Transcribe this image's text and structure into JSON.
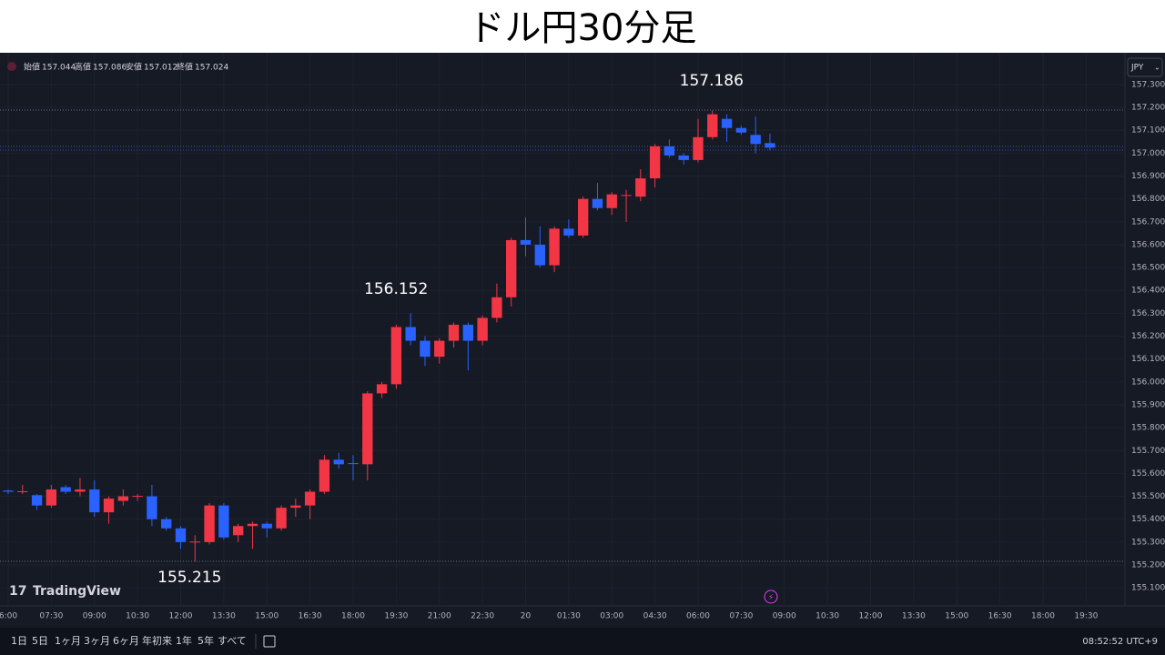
{
  "title": "ドル円30分足",
  "ohlc_header": {
    "open_label": "始値",
    "open": 157.044,
    "high_label": "高値",
    "high": 157.086,
    "low_label": "安値",
    "low": 157.012,
    "close_label": "終値",
    "close": 157.024
  },
  "currency": "JPY",
  "branding": "TradingView",
  "toolbar": {
    "ranges": [
      "1日",
      "5日",
      "1ヶ月",
      "3ヶ月",
      "6ヶ月",
      "年初来",
      "1年",
      "5年",
      "すべて"
    ],
    "clock": "08:52:52 UTC+9"
  },
  "chart_data": {
    "type": "candlestick",
    "up_color": "#f23645",
    "down_color": "#2962ff",
    "candles": [
      {
        "open": 155.525,
        "high": 155.53,
        "low": 155.51,
        "close": 155.52
      },
      {
        "open": 155.52,
        "high": 155.55,
        "low": 155.51,
        "close": 155.522
      },
      {
        "open": 155.505,
        "high": 155.51,
        "low": 155.44,
        "close": 155.46
      },
      {
        "open": 155.46,
        "high": 155.55,
        "low": 155.45,
        "close": 155.53
      },
      {
        "open": 155.54,
        "high": 155.55,
        "low": 155.51,
        "close": 155.52
      },
      {
        "open": 155.52,
        "high": 155.58,
        "low": 155.5,
        "close": 155.53
      },
      {
        "open": 155.53,
        "high": 155.57,
        "low": 155.41,
        "close": 155.43
      },
      {
        "open": 155.43,
        "high": 155.5,
        "low": 155.38,
        "close": 155.49
      },
      {
        "open": 155.48,
        "high": 155.53,
        "low": 155.46,
        "close": 155.5
      },
      {
        "open": 155.5,
        "high": 155.51,
        "low": 155.48,
        "close": 155.502
      },
      {
        "open": 155.5,
        "high": 155.55,
        "low": 155.37,
        "close": 155.4
      },
      {
        "open": 155.4,
        "high": 155.41,
        "low": 155.35,
        "close": 155.36
      },
      {
        "open": 155.36,
        "high": 155.37,
        "low": 155.27,
        "close": 155.3
      },
      {
        "open": 155.3,
        "high": 155.33,
        "low": 155.215,
        "close": 155.302
      },
      {
        "open": 155.3,
        "high": 155.47,
        "low": 155.29,
        "close": 155.46
      },
      {
        "open": 155.46,
        "high": 155.47,
        "low": 155.31,
        "close": 155.32
      },
      {
        "open": 155.33,
        "high": 155.38,
        "low": 155.3,
        "close": 155.37
      },
      {
        "open": 155.37,
        "high": 155.39,
        "low": 155.27,
        "close": 155.38
      },
      {
        "open": 155.38,
        "high": 155.39,
        "low": 155.32,
        "close": 155.36
      },
      {
        "open": 155.36,
        "high": 155.46,
        "low": 155.35,
        "close": 155.45
      },
      {
        "open": 155.45,
        "high": 155.49,
        "low": 155.41,
        "close": 155.46
      },
      {
        "open": 155.46,
        "high": 155.53,
        "low": 155.4,
        "close": 155.52
      },
      {
        "open": 155.52,
        "high": 155.68,
        "low": 155.51,
        "close": 155.66
      },
      {
        "open": 155.66,
        "high": 155.69,
        "low": 155.62,
        "close": 155.64
      },
      {
        "open": 155.645,
        "high": 155.68,
        "low": 155.57,
        "close": 155.643
      },
      {
        "open": 155.64,
        "high": 155.96,
        "low": 155.57,
        "close": 155.95
      },
      {
        "open": 155.95,
        "high": 156.0,
        "low": 155.93,
        "close": 155.99
      },
      {
        "open": 155.99,
        "high": 156.25,
        "low": 155.97,
        "close": 156.24
      },
      {
        "open": 156.24,
        "high": 156.3,
        "low": 156.16,
        "close": 156.18
      },
      {
        "open": 156.18,
        "high": 156.2,
        "low": 156.07,
        "close": 156.11
      },
      {
        "open": 156.11,
        "high": 156.19,
        "low": 156.08,
        "close": 156.18
      },
      {
        "open": 156.18,
        "high": 156.26,
        "low": 156.15,
        "close": 156.25
      },
      {
        "open": 156.25,
        "high": 156.26,
        "low": 156.05,
        "close": 156.18
      },
      {
        "open": 156.18,
        "high": 156.29,
        "low": 156.16,
        "close": 156.28
      },
      {
        "open": 156.28,
        "high": 156.43,
        "low": 156.26,
        "close": 156.37
      },
      {
        "open": 156.37,
        "high": 156.63,
        "low": 156.33,
        "close": 156.62
      },
      {
        "open": 156.62,
        "high": 156.72,
        "low": 156.55,
        "close": 156.6
      },
      {
        "open": 156.6,
        "high": 156.68,
        "low": 156.5,
        "close": 156.51
      },
      {
        "open": 156.51,
        "high": 156.68,
        "low": 156.48,
        "close": 156.67
      },
      {
        "open": 156.67,
        "high": 156.71,
        "low": 156.63,
        "close": 156.64
      },
      {
        "open": 156.64,
        "high": 156.81,
        "low": 156.63,
        "close": 156.8
      },
      {
        "open": 156.8,
        "high": 156.87,
        "low": 156.75,
        "close": 156.76
      },
      {
        "open": 156.76,
        "high": 156.83,
        "low": 156.73,
        "close": 156.82
      },
      {
        "open": 156.815,
        "high": 156.84,
        "low": 156.7,
        "close": 156.817
      },
      {
        "open": 156.81,
        "high": 156.93,
        "low": 156.79,
        "close": 156.89
      },
      {
        "open": 156.89,
        "high": 157.04,
        "low": 156.85,
        "close": 157.03
      },
      {
        "open": 157.03,
        "high": 157.06,
        "low": 156.98,
        "close": 156.99
      },
      {
        "open": 156.99,
        "high": 157.0,
        "low": 156.95,
        "close": 156.97
      },
      {
        "open": 156.97,
        "high": 157.15,
        "low": 156.96,
        "close": 157.07
      },
      {
        "open": 157.07,
        "high": 157.186,
        "low": 157.06,
        "close": 157.17
      },
      {
        "open": 157.15,
        "high": 157.17,
        "low": 157.05,
        "close": 157.11
      },
      {
        "open": 157.11,
        "high": 157.12,
        "low": 157.08,
        "close": 157.09
      },
      {
        "open": 157.08,
        "high": 157.16,
        "low": 157.0,
        "close": 157.04
      },
      {
        "open": 157.044,
        "high": 157.086,
        "low": 157.012,
        "close": 157.024
      }
    ],
    "xlim": [
      -0.57,
      77.7
    ],
    "xticks": [
      {
        "value": 0,
        "label": "6:00"
      },
      {
        "value": 3,
        "label": "07:30"
      },
      {
        "value": 6,
        "label": "09:00"
      },
      {
        "value": 9,
        "label": "10:30"
      },
      {
        "value": 12,
        "label": "12:00"
      },
      {
        "value": 15,
        "label": "13:30"
      },
      {
        "value": 18,
        "label": "15:00"
      },
      {
        "value": 21,
        "label": "16:30"
      },
      {
        "value": 24,
        "label": "18:00"
      },
      {
        "value": 27,
        "label": "19:30"
      },
      {
        "value": 30,
        "label": "21:00"
      },
      {
        "value": 33,
        "label": "22:30"
      },
      {
        "value": 36,
        "label": "20"
      },
      {
        "value": 39,
        "label": "01:30"
      },
      {
        "value": 42,
        "label": "03:00"
      },
      {
        "value": 45,
        "label": "04:30"
      },
      {
        "value": 48,
        "label": "06:00"
      },
      {
        "value": 51,
        "label": "07:30"
      },
      {
        "value": 54,
        "label": "09:00"
      },
      {
        "value": 57,
        "label": "10:30"
      },
      {
        "value": 60,
        "label": "12:00"
      },
      {
        "value": 63,
        "label": "13:30"
      },
      {
        "value": 66,
        "label": "15:00"
      },
      {
        "value": 69,
        "label": "16:30"
      },
      {
        "value": 72,
        "label": "18:00"
      },
      {
        "value": 75,
        "label": "19:30"
      }
    ],
    "ylim": [
      155.025,
      157.431
    ],
    "yticks": [
      {
        "value": 155.1,
        "label": "155.100"
      },
      {
        "value": 155.2,
        "label": "155.200"
      },
      {
        "value": 155.3,
        "label": "155.300"
      },
      {
        "value": 155.4,
        "label": "155.400"
      },
      {
        "value": 155.5,
        "label": "155.500"
      },
      {
        "value": 155.6,
        "label": "155.600"
      },
      {
        "value": 155.7,
        "label": "155.700"
      },
      {
        "value": 155.8,
        "label": "155.800"
      },
      {
        "value": 155.9,
        "label": "155.900"
      },
      {
        "value": 156.0,
        "label": "156.000"
      },
      {
        "value": 156.1,
        "label": "156.100"
      },
      {
        "value": 156.2,
        "label": "156.200"
      },
      {
        "value": 156.3,
        "label": "156.300"
      },
      {
        "value": 156.4,
        "label": "156.400"
      },
      {
        "value": 156.5,
        "label": "156.500"
      },
      {
        "value": 156.6,
        "label": "156.600"
      },
      {
        "value": 156.7,
        "label": "156.700"
      },
      {
        "value": 156.8,
        "label": "156.800"
      },
      {
        "value": 156.9,
        "label": "156.900"
      },
      {
        "value": 157.0,
        "label": "157.000"
      },
      {
        "value": 157.1,
        "label": "157.100"
      },
      {
        "value": 157.2,
        "label": "157.200"
      },
      {
        "value": 157.3,
        "label": "157.300"
      }
    ],
    "grid": true,
    "annotations": [
      {
        "text": "157.186",
        "value": 157.186,
        "index": 49
      },
      {
        "text": "156.152",
        "value": 156.152,
        "index": 28
      },
      {
        "text": "155.215",
        "value": 155.215,
        "index": 13
      }
    ]
  }
}
